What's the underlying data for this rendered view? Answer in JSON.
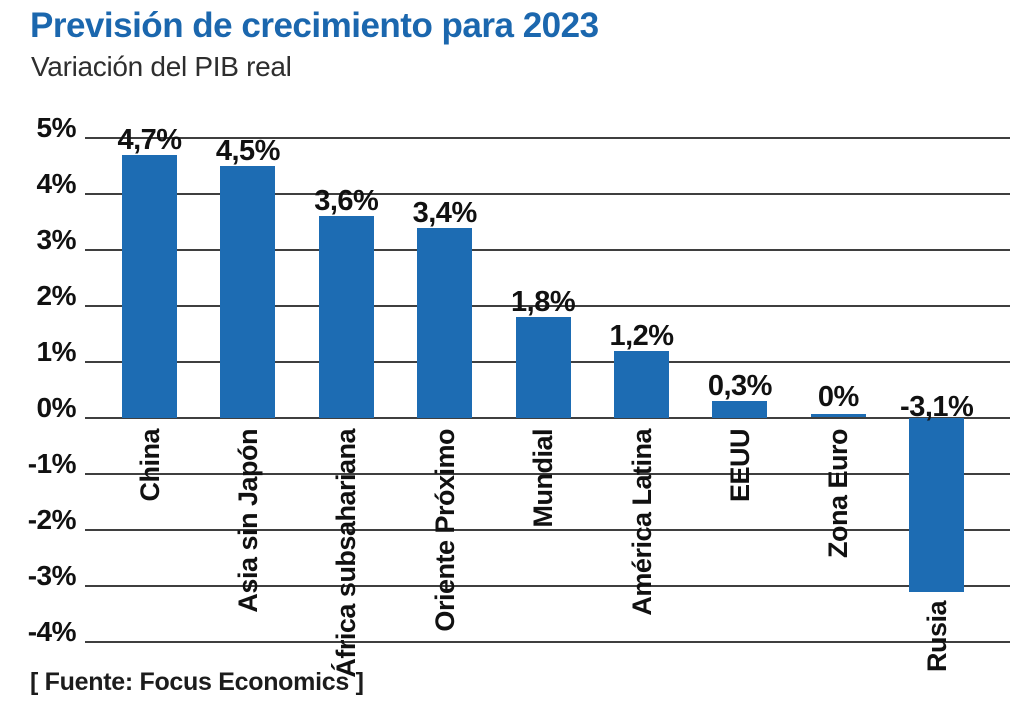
{
  "header": {
    "title": "Previsión de crecimiento para 2023",
    "subtitle": "Variación del PIB real"
  },
  "footer": {
    "source": "[ Fuente: Focus Economics ]"
  },
  "colors": {
    "title_blue": "#1b67ae",
    "bar_blue": "#1d6cb3",
    "grid_gray": "#3f3f3f",
    "text_black": "#111111"
  },
  "chart_data": {
    "type": "bar",
    "title": "Previsión de crecimiento para 2023",
    "subtitle": "Variación del PIB real",
    "source": "[ Fuente: Focus Economics ]",
    "categories": [
      "China",
      "Asia sin Japón",
      "África subsahariana",
      "Oriente Próximo",
      "Mundial",
      "América Latina",
      "EEUU",
      "Zona Euro",
      "Rusia"
    ],
    "values": [
      4.7,
      4.5,
      3.6,
      3.4,
      1.8,
      1.2,
      0.3,
      0,
      -3.1
    ],
    "value_labels": [
      "4,7%",
      "4,5%",
      "3,6%",
      "3,4%",
      "1,8%",
      "1,2%",
      "0,3%",
      "0%",
      "-3,1%"
    ],
    "y_tick_labels": [
      "5%",
      "4%",
      "3%",
      "2%",
      "1%",
      "0%",
      "-1%",
      "-2%",
      "-3%",
      "-4%"
    ],
    "y_tick_values": [
      5,
      4,
      3,
      2,
      1,
      0,
      -1,
      -2,
      -3,
      -4
    ],
    "ylim": [
      -4,
      5
    ],
    "xlabel": "",
    "ylabel": "",
    "grid": true,
    "legend": "none",
    "category_label_rotation": -90,
    "value_label_decimal_separator": ","
  }
}
